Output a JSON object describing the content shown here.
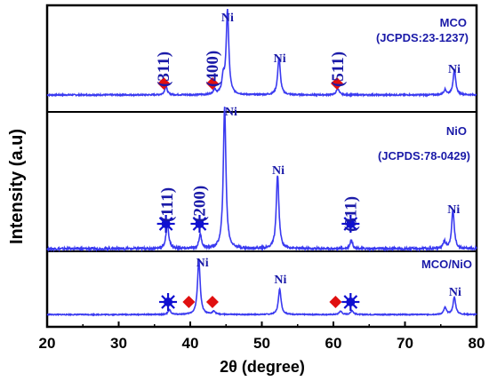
{
  "chart_data": {
    "type": "line",
    "xlabel": "2θ (degree)",
    "ylabel": "Intensity (a.u)",
    "xlim": [
      20,
      80
    ],
    "x_ticks": [
      "20",
      "30",
      "40",
      "50",
      "60",
      "70",
      "80"
    ],
    "line_color": "#3a3af0",
    "marker_diamond_color": "#e01010",
    "marker_star_color": "#1010d0",
    "panels": [
      {
        "name": "MCO",
        "ref": "(JCPDS:23-1237)",
        "peaks": [
          {
            "x": 36.6,
            "h": 0.1
          },
          {
            "x": 43.4,
            "h": 0.06
          },
          {
            "x": 44.6,
            "h": 0.18
          },
          {
            "x": 45.2,
            "h": 1.0
          },
          {
            "x": 52.4,
            "h": 0.45
          },
          {
            "x": 60.6,
            "h": 0.08
          },
          {
            "x": 75.6,
            "h": 0.06
          },
          {
            "x": 76.9,
            "h": 0.3
          }
        ],
        "labels": [
          {
            "text": "(311)",
            "x": 36.3,
            "type": "hkl"
          },
          {
            "text": "(400)",
            "x": 43.1,
            "type": "hkl"
          },
          {
            "text": "Ni",
            "x": 45.2,
            "type": "ni"
          },
          {
            "text": "Ni",
            "x": 52.5,
            "type": "ni"
          },
          {
            "text": "(511)",
            "x": 60.6,
            "type": "hkl"
          },
          {
            "text": "Ni",
            "x": 76.9,
            "type": "ni"
          }
        ],
        "diamonds": [
          36.3,
          43.1,
          60.5
        ],
        "stars": []
      },
      {
        "name": "NiO",
        "ref": "(JCPDS:78-0429)",
        "peaks": [
          {
            "x": 36.8,
            "h": 0.18
          },
          {
            "x": 41.4,
            "h": 0.1
          },
          {
            "x": 44.8,
            "h": 1.0
          },
          {
            "x": 52.2,
            "h": 0.52
          },
          {
            "x": 62.5,
            "h": 0.06
          },
          {
            "x": 75.5,
            "h": 0.05
          },
          {
            "x": 76.7,
            "h": 0.27
          }
        ],
        "labels": [
          {
            "text": "(111)",
            "x": 36.8,
            "type": "hkl"
          },
          {
            "text": "(200)",
            "x": 41.3,
            "type": "hkl"
          },
          {
            "text": "Ni",
            "x": 45.7,
            "type": "ni"
          },
          {
            "text": "Ni",
            "x": 52.3,
            "type": "ni"
          },
          {
            "text": "(311)",
            "x": 62.4,
            "type": "hkl"
          },
          {
            "text": "Ni",
            "x": 76.8,
            "type": "ni"
          }
        ],
        "diamonds": [],
        "stars": [
          36.6,
          41.3,
          62.4
        ]
      },
      {
        "name": "MCO/NiO",
        "ref": "",
        "peaks": [
          {
            "x": 37.1,
            "h": 0.08
          },
          {
            "x": 43.3,
            "h": 0.06
          },
          {
            "x": 41.2,
            "h": 0.95
          },
          {
            "x": 52.5,
            "h": 0.45
          },
          {
            "x": 61.0,
            "h": 0.06
          },
          {
            "x": 62.6,
            "h": 0.07
          },
          {
            "x": 75.6,
            "h": 0.12
          },
          {
            "x": 76.9,
            "h": 0.3
          }
        ],
        "labels": [
          {
            "text": "Ni",
            "x": 41.7,
            "type": "ni"
          },
          {
            "text": "Ni",
            "x": 52.6,
            "type": "ni"
          },
          {
            "text": "Ni",
            "x": 77.0,
            "type": "ni"
          }
        ],
        "diamonds": [
          39.8,
          43.1,
          60.3
        ],
        "stars": [
          36.9,
          62.4
        ]
      }
    ]
  }
}
